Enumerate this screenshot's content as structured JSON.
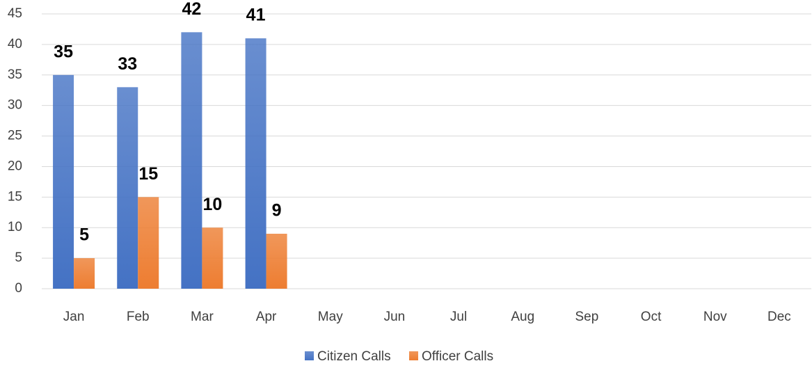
{
  "chart_data": {
    "type": "bar",
    "categories": [
      "Jan",
      "Feb",
      "Mar",
      "Apr",
      "May",
      "Jun",
      "Jul",
      "Aug",
      "Sep",
      "Oct",
      "Nov",
      "Dec"
    ],
    "series": [
      {
        "name": "Citizen Calls",
        "color": "#4472c4",
        "values": [
          35,
          33,
          42,
          41,
          null,
          null,
          null,
          null,
          null,
          null,
          null,
          null
        ]
      },
      {
        "name": "Officer Calls",
        "color": "#ed7d31",
        "values": [
          5,
          15,
          10,
          9,
          null,
          null,
          null,
          null,
          null,
          null,
          null,
          null
        ]
      }
    ],
    "ylim": [
      0,
      45
    ],
    "yticks": [
      0,
      5,
      10,
      15,
      20,
      25,
      30,
      35,
      40,
      45
    ],
    "grid": true,
    "legend": "bottom"
  }
}
